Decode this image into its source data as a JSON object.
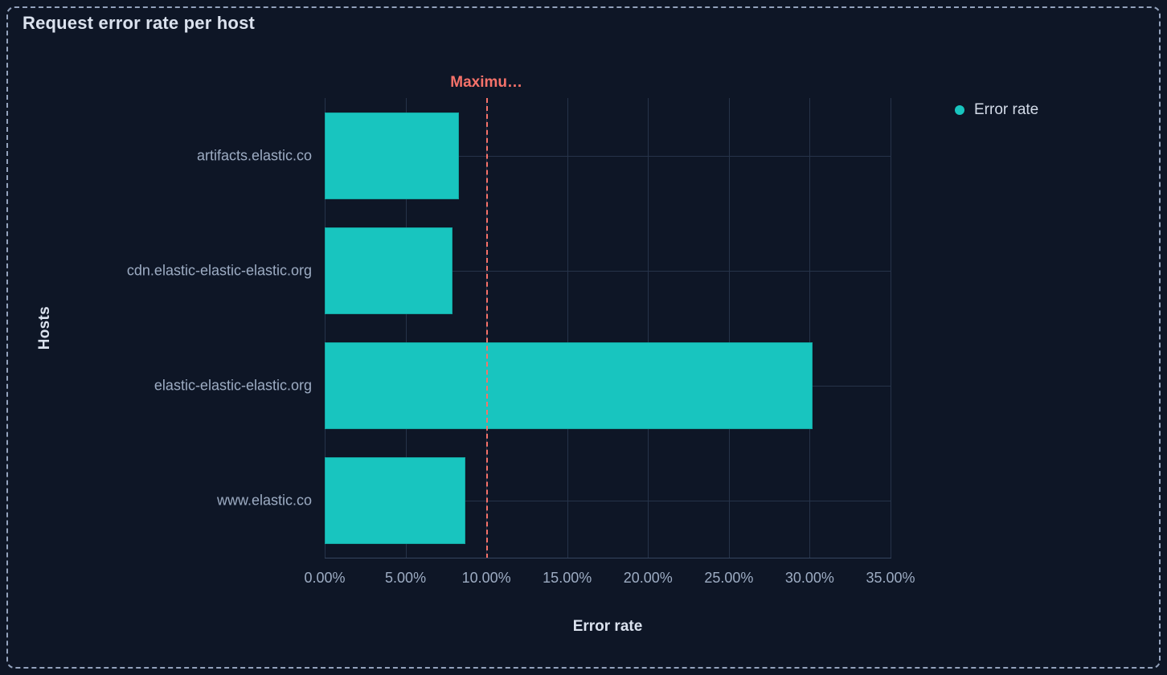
{
  "panel": {
    "title": "Request error rate per host"
  },
  "legend": {
    "position": "right",
    "items": [
      {
        "label": "Error rate",
        "color": "#18C5BF"
      }
    ]
  },
  "chart_data": {
    "type": "bar",
    "orientation": "horizontal",
    "title": "Request error rate per host",
    "xlabel": "Error rate",
    "ylabel": "Hosts",
    "categories": [
      "artifacts.elastic.co",
      "cdn.elastic-elastic-elastic.org",
      "elastic-elastic-elastic.org",
      "www.elastic.co"
    ],
    "series": [
      {
        "name": "Error rate",
        "unit": "%",
        "values": [
          8.3,
          7.9,
          30.2,
          8.7
        ]
      }
    ],
    "xlim": [
      0,
      35
    ],
    "x_ticks": [
      {
        "value": 0,
        "label": "0.00%"
      },
      {
        "value": 5,
        "label": "5.00%"
      },
      {
        "value": 10,
        "label": "10.00%"
      },
      {
        "value": 15,
        "label": "15.00%"
      },
      {
        "value": 20,
        "label": "20.00%"
      },
      {
        "value": 25,
        "label": "25.00%"
      },
      {
        "value": 30,
        "label": "30.00%"
      },
      {
        "value": 35,
        "label": "35.00%"
      }
    ],
    "grid": true,
    "legend_position": "right",
    "annotation": {
      "label": "Maximu…",
      "value": 10,
      "style": "dashed",
      "color": "#F6726A"
    }
  },
  "colors": {
    "background": "#0E1626",
    "panel_border": "#93A2BC",
    "bar": "#18C5BF",
    "annotation": "#F6726A",
    "gridline": "#263349",
    "axis_line": "#36455F",
    "tick_label": "#9DACC3",
    "axis_title": "#DBE2EE",
    "legend_text": "#D3DBE8",
    "title": "#DBE2EE"
  }
}
